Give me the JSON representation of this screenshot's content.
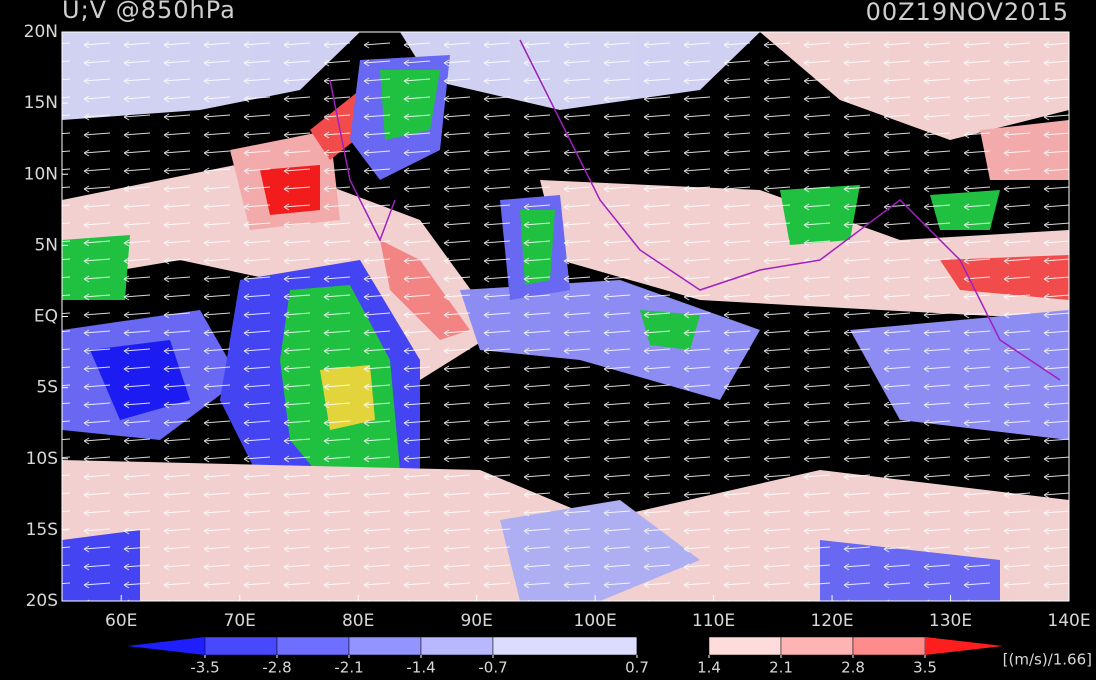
{
  "header": {
    "title": "U;V @850hPa",
    "time": "00Z19NOV2015"
  },
  "map": {
    "xlim": [
      55,
      140
    ],
    "ylim": [
      -20,
      20
    ],
    "xticks": [
      {
        "value": 60,
        "label": "60E"
      },
      {
        "value": 70,
        "label": "70E"
      },
      {
        "value": 80,
        "label": "80E"
      },
      {
        "value": 90,
        "label": "90E"
      },
      {
        "value": 100,
        "label": "100E"
      },
      {
        "value": 110,
        "label": "110E"
      },
      {
        "value": 120,
        "label": "120E"
      },
      {
        "value": 130,
        "label": "130E"
      },
      {
        "value": 140,
        "label": "140E"
      }
    ],
    "yticks": [
      {
        "value": 20,
        "label": "20N"
      },
      {
        "value": 15,
        "label": "15N"
      },
      {
        "value": 10,
        "label": "10N"
      },
      {
        "value": 5,
        "label": "5N"
      },
      {
        "value": 0,
        "label": "EQ"
      },
      {
        "value": -5,
        "label": "5S"
      },
      {
        "value": -10,
        "label": "10S"
      },
      {
        "value": -15,
        "label": "15S"
      },
      {
        "value": -20,
        "label": "20S"
      }
    ]
  },
  "colorbar": {
    "ticks": [
      -3.5,
      -2.8,
      -2.1,
      -1.4,
      -0.7,
      0.7,
      1.4,
      2.1,
      2.8,
      3.5
    ],
    "colors": [
      "#1e1eff",
      "#4848ff",
      "#6e6eff",
      "#9494ff",
      "#b8b8ff",
      "#dcdcff",
      "#000000",
      "#ffdcdc",
      "#ffb4b4",
      "#ff8c8c",
      "#ff5050",
      "#ff1e1e"
    ],
    "units": "[(m/s)/1.66]"
  }
}
